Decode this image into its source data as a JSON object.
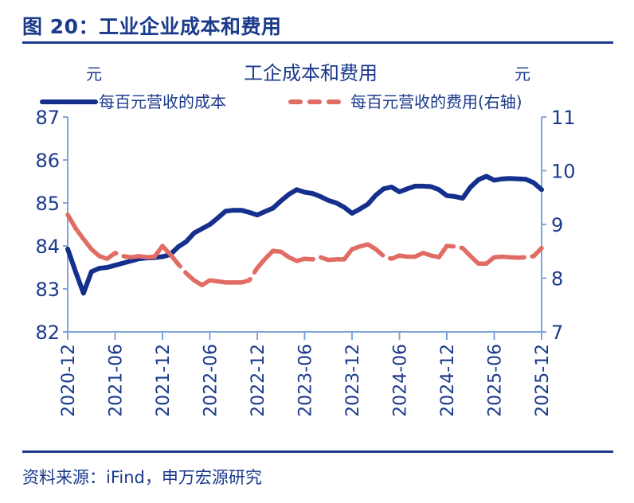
{
  "figure_title": "图 20：工业企业成本和费用",
  "source": "资料来源：iFind，申万宏源研究",
  "colors": {
    "primary": "#1b3a8c",
    "cost_line": "#152f8c",
    "expense_line": "#e06c63",
    "axis": "#7fa5d6"
  },
  "chart_data": {
    "type": "line",
    "title": "工企成本和费用",
    "left_unit": "元",
    "right_unit": "元",
    "ylim_left": [
      82,
      87
    ],
    "ylim_right": [
      7,
      11
    ],
    "yticks_left": [
      "82",
      "83",
      "84",
      "85",
      "86",
      "87"
    ],
    "yticks_right": [
      "7",
      "8",
      "9",
      "10",
      "11"
    ],
    "xticks": [
      "2020-12",
      "2021-06",
      "2021-12",
      "2022-06",
      "2022-12",
      "2023-06",
      "2023-12",
      "2024-06",
      "2024-12",
      "2025-06",
      "2025-12"
    ],
    "x_start": "2020-12",
    "x_end": "2025-12",
    "grid": false,
    "legend": "top",
    "series": [
      {
        "name": "每百元营收的成本",
        "axis": "left",
        "style": "solid",
        "values": [
          83.93,
          83.4,
          82.9,
          83.4,
          83.48,
          83.5,
          83.55,
          83.6,
          83.65,
          83.7,
          83.72,
          83.73,
          83.75,
          83.8,
          83.98,
          84.1,
          84.3,
          84.4,
          84.5,
          84.65,
          84.81,
          84.83,
          84.83,
          84.78,
          84.72,
          84.8,
          84.88,
          85.05,
          85.2,
          85.31,
          85.25,
          85.22,
          85.15,
          85.06,
          85.0,
          84.9,
          84.76,
          84.86,
          84.97,
          85.18,
          85.33,
          85.37,
          85.26,
          85.33,
          85.39,
          85.39,
          85.38,
          85.31,
          85.17,
          85.15,
          85.11,
          85.37,
          85.54,
          85.62,
          85.53,
          85.56,
          85.57,
          85.56,
          85.55,
          85.47,
          85.31
        ]
      },
      {
        "name": "每百元营收的费用(右轴)",
        "axis": "right",
        "style": "dashed",
        "values": [
          9.18,
          8.93,
          8.73,
          8.54,
          8.41,
          8.36,
          8.47,
          8.41,
          8.39,
          8.41,
          8.39,
          8.4,
          8.6,
          8.44,
          8.26,
          8.09,
          7.96,
          7.87,
          7.96,
          7.94,
          7.92,
          7.92,
          7.92,
          7.96,
          8.19,
          8.36,
          8.51,
          8.49,
          8.39,
          8.32,
          8.36,
          8.35,
          8.39,
          8.34,
          8.35,
          8.35,
          8.54,
          8.59,
          8.63,
          8.54,
          8.41,
          8.36,
          8.42,
          8.4,
          8.4,
          8.47,
          8.42,
          8.39,
          8.6,
          8.59,
          8.56,
          8.41,
          8.27,
          8.27,
          8.39,
          8.4,
          8.39,
          8.38,
          8.39,
          8.41,
          8.56
        ]
      }
    ]
  }
}
